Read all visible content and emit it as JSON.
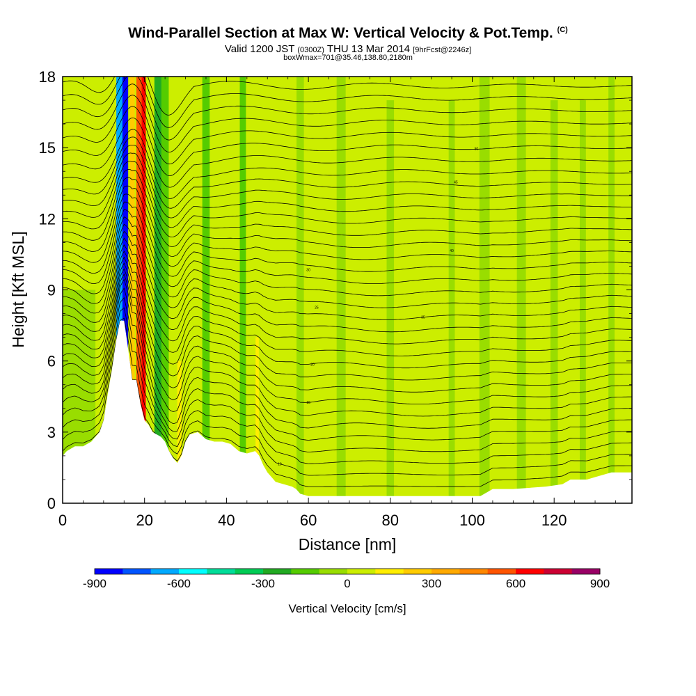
{
  "header": {
    "title": "Wind-Parallel Section at Max W: Vertical Velocity & Pot.Temp.",
    "copyright": "(C)",
    "valid_prefix": "Valid 1200 JST",
    "valid_utc": "(0300Z)",
    "valid_date": "THU 13 Mar 2014",
    "forecast": "[9hrFcst@2246z]",
    "boxinfo": "boxWmax=701@35.46,138.80,2180m"
  },
  "chart_data": {
    "type": "heatmap",
    "xlabel": "Distance [nm]",
    "ylabel": "Height [Kft MSL]",
    "xlim": [
      0,
      139
    ],
    "ylim": [
      0,
      18
    ],
    "xticks": [
      0,
      20,
      40,
      60,
      80,
      100,
      120
    ],
    "yticks": [
      0,
      3,
      6,
      9,
      12,
      15,
      18
    ],
    "colorbar": {
      "label": "Vertical Velocity [cm/s]",
      "range": [
        -900,
        900
      ],
      "step": 100,
      "tick_values": [
        -900,
        -600,
        -300,
        0,
        300,
        600,
        900
      ],
      "colors": [
        "#0000ff",
        "#0055ff",
        "#00aaff",
        "#00ffff",
        "#00dd99",
        "#00cc55",
        "#22aa22",
        "#55cc00",
        "#99dd00",
        "#ccee00",
        "#ffee00",
        "#ffcc00",
        "#ffaa00",
        "#ff8800",
        "#ff5500",
        "#ff0000",
        "#cc0033",
        "#990066"
      ]
    },
    "terrain_kft": [
      [
        0,
        2.0
      ],
      [
        1,
        2.2
      ],
      [
        3,
        2.4
      ],
      [
        5,
        2.4
      ],
      [
        7,
        2.6
      ],
      [
        8,
        2.8
      ],
      [
        9,
        3.0
      ],
      [
        10,
        3.5
      ],
      [
        11,
        4.6
      ],
      [
        12,
        5.6
      ],
      [
        13,
        6.8
      ],
      [
        14,
        7.7
      ],
      [
        15,
        7.7
      ],
      [
        16,
        6.5
      ],
      [
        17,
        5.2
      ],
      [
        18,
        5.2
      ],
      [
        19,
        4.2
      ],
      [
        20,
        3.5
      ],
      [
        21,
        3.3
      ],
      [
        22,
        3.0
      ],
      [
        24,
        2.8
      ],
      [
        25,
        2.6
      ],
      [
        26,
        2.2
      ],
      [
        27,
        1.9
      ],
      [
        28,
        1.7
      ],
      [
        29,
        2.0
      ],
      [
        30,
        2.6
      ],
      [
        31,
        2.9
      ],
      [
        33,
        3.0
      ],
      [
        35,
        2.7
      ],
      [
        37,
        2.6
      ],
      [
        39,
        2.6
      ],
      [
        41,
        2.5
      ],
      [
        43,
        2.2
      ],
      [
        45,
        2.1
      ],
      [
        47,
        2.2
      ],
      [
        48,
        2.0
      ],
      [
        49,
        1.6
      ],
      [
        50,
        1.3
      ],
      [
        51,
        1.1
      ],
      [
        52,
        0.9
      ],
      [
        54,
        0.8
      ],
      [
        56,
        0.7
      ],
      [
        57,
        0.6
      ],
      [
        58,
        0.4
      ],
      [
        60,
        0.3
      ],
      [
        62,
        0.3
      ],
      [
        65,
        0.3
      ],
      [
        70,
        0.3
      ],
      [
        80,
        0.3
      ],
      [
        90,
        0.3
      ],
      [
        98,
        0.3
      ],
      [
        102,
        0.3
      ],
      [
        104,
        0.5
      ],
      [
        105,
        0.6
      ],
      [
        110,
        0.6
      ],
      [
        118,
        0.7
      ],
      [
        122,
        0.8
      ],
      [
        124,
        1.0
      ],
      [
        128,
        1.0
      ],
      [
        130,
        1.1
      ],
      [
        132,
        1.2
      ],
      [
        134,
        1.3
      ],
      [
        139,
        1.3
      ]
    ],
    "w_features": [
      {
        "x": 4,
        "w": 8,
        "ytop": 9.0,
        "value": -60
      },
      {
        "x": 13.8,
        "w": 1.0,
        "ytop": 7.5,
        "value": -450
      },
      {
        "x": 14.3,
        "w": 2.4,
        "ytop": 18,
        "value": -700
      },
      {
        "x": 15.3,
        "w": 1.4,
        "ytop": 18,
        "value": -860
      },
      {
        "x": 17.0,
        "w": 1.2,
        "ytop": 18,
        "value": 200
      },
      {
        "x": 18.8,
        "w": 1.6,
        "ytop": 18,
        "value": 500
      },
      {
        "x": 19.8,
        "w": 1.0,
        "ytop": 18,
        "value": 650
      },
      {
        "x": 23.5,
        "w": 2.2,
        "ytop": 18,
        "value": -300
      },
      {
        "x": 25.0,
        "w": 1.8,
        "ytop": 18,
        "value": -120
      },
      {
        "x": 28.5,
        "w": 1.0,
        "ytop": 6.0,
        "value": 150
      },
      {
        "x": 35.0,
        "w": 1.8,
        "ytop": 18,
        "value": -150
      },
      {
        "x": 44.0,
        "w": 1.5,
        "ytop": 18,
        "value": -200
      },
      {
        "x": 47.5,
        "w": 0.8,
        "ytop": 7.0,
        "value": 150
      },
      {
        "x": 58.0,
        "w": 1.8,
        "ytop": 18,
        "value": -60
      },
      {
        "x": 68.0,
        "w": 2.2,
        "ytop": 18,
        "value": -70
      },
      {
        "x": 80.0,
        "w": 1.8,
        "ytop": 17,
        "value": -50
      },
      {
        "x": 95.0,
        "w": 1.5,
        "ytop": 17,
        "value": -50
      },
      {
        "x": 103.0,
        "w": 2.5,
        "ytop": 18,
        "value": -80
      },
      {
        "x": 112.0,
        "w": 2.2,
        "ytop": 18,
        "value": -70
      },
      {
        "x": 120.0,
        "w": 1.8,
        "ytop": 17,
        "value": -60
      },
      {
        "x": 127.0,
        "w": 1.5,
        "ytop": 17,
        "value": -60
      },
      {
        "x": 134.0,
        "w": 1.5,
        "ytop": 18,
        "value": -60
      }
    ],
    "theta_contour_labels": [
      "10",
      "15",
      "20",
      "25",
      "30",
      "35",
      "40",
      "45",
      "50"
    ]
  }
}
